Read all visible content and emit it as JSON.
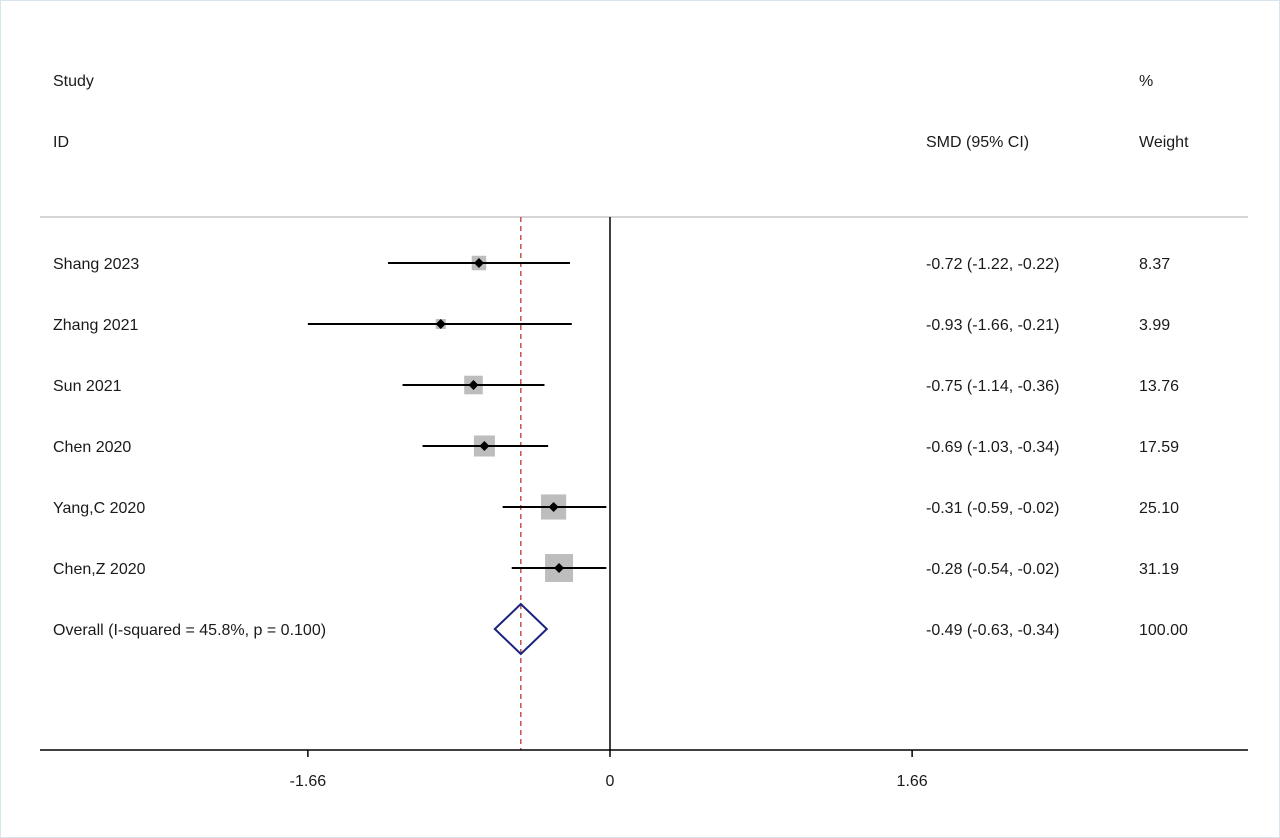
{
  "chart_data": {
    "type": "forest",
    "headers": {
      "study_line1": "Study",
      "study_line2": "ID",
      "effect": "SMD (95% CI)",
      "weight_line1": "%",
      "weight_line2": "Weight"
    },
    "studies": [
      {
        "label": "Shang 2023",
        "smd": -0.72,
        "lo": -1.22,
        "hi": -0.22,
        "ci_text": "-0.72 (-1.22, -0.22)",
        "weight": 8.37,
        "weight_text": "8.37"
      },
      {
        "label": "Zhang 2021",
        "smd": -0.93,
        "lo": -1.66,
        "hi": -0.21,
        "ci_text": "-0.93 (-1.66, -0.21)",
        "weight": 3.99,
        "weight_text": "3.99"
      },
      {
        "label": "Sun 2021",
        "smd": -0.75,
        "lo": -1.14,
        "hi": -0.36,
        "ci_text": "-0.75 (-1.14, -0.36)",
        "weight": 13.76,
        "weight_text": "13.76"
      },
      {
        "label": "Chen 2020",
        "smd": -0.69,
        "lo": -1.03,
        "hi": -0.34,
        "ci_text": "-0.69 (-1.03, -0.34)",
        "weight": 17.59,
        "weight_text": "17.59"
      },
      {
        "label": "Yang,C 2020",
        "smd": -0.31,
        "lo": -0.59,
        "hi": -0.02,
        "ci_text": "-0.31 (-0.59, -0.02)",
        "weight": 25.1,
        "weight_text": "25.10"
      },
      {
        "label": "Chen,Z 2020",
        "smd": -0.28,
        "lo": -0.54,
        "hi": -0.02,
        "ci_text": "-0.28 (-0.54, -0.02)",
        "weight": 31.19,
        "weight_text": "31.19"
      }
    ],
    "overall": {
      "label": "Overall  (I-squared = 45.8%, p = 0.100)",
      "smd": -0.49,
      "lo": -0.63,
      "hi": -0.34,
      "ci_text": "-0.49 (-0.63, -0.34)",
      "weight_text": "100.00"
    },
    "x_ticks": [
      {
        "value": -1.66,
        "label": "-1.66"
      },
      {
        "value": 0,
        "label": "0"
      },
      {
        "value": 1.66,
        "label": "1.66"
      }
    ],
    "xlim": [
      -3.12,
      3.48
    ],
    "null_line": 0,
    "colors": {
      "ci_line": "#000000",
      "weight_box": "#bdbdbd",
      "point": "#000000",
      "overall_diamond": "#1a237e",
      "overall_line": "#c0392b",
      "separator": "#c8c8c8"
    }
  }
}
